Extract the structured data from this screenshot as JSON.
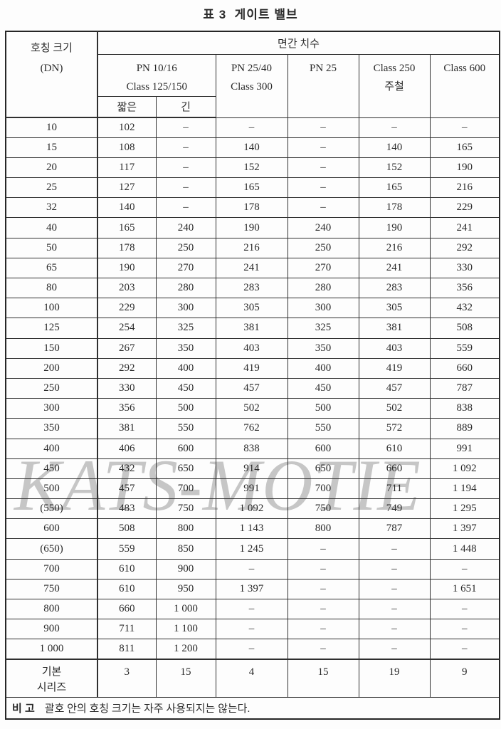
{
  "title": "표 3  게이트 밸브",
  "watermark": "KATS-MOTIE",
  "colors": {
    "text": "#2a2a2a",
    "border": "#2f2f2f",
    "watermark": "#c6c6c6",
    "background": "#fdfdfd"
  },
  "table": {
    "header": {
      "dn_line1": "호칭 크기",
      "dn_line2": "(DN)",
      "span_title": "면간 치수",
      "group_pn1016_line1": "PN 10/16",
      "group_pn1016_line2": "Class 125/150",
      "sub_short": "짧은",
      "sub_long": "긴",
      "pn2540_line1": "PN 25/40",
      "pn2540_line2": "Class 300",
      "pn25": "PN 25",
      "class250_line1": "Class 250",
      "class250_line2": "주철",
      "class600": "Class 600"
    },
    "rows": [
      [
        "10",
        "102",
        "–",
        "–",
        "–",
        "–",
        "–"
      ],
      [
        "15",
        "108",
        "–",
        "140",
        "–",
        "140",
        "165"
      ],
      [
        "20",
        "117",
        "–",
        "152",
        "–",
        "152",
        "190"
      ],
      [
        "25",
        "127",
        "–",
        "165",
        "–",
        "165",
        "216"
      ],
      [
        "32",
        "140",
        "–",
        "178",
        "–",
        "178",
        "229"
      ],
      [
        "40",
        "165",
        "240",
        "190",
        "240",
        "190",
        "241"
      ],
      [
        "50",
        "178",
        "250",
        "216",
        "250",
        "216",
        "292"
      ],
      [
        "65",
        "190",
        "270",
        "241",
        "270",
        "241",
        "330"
      ],
      [
        "80",
        "203",
        "280",
        "283",
        "280",
        "283",
        "356"
      ],
      [
        "100",
        "229",
        "300",
        "305",
        "300",
        "305",
        "432"
      ],
      [
        "125",
        "254",
        "325",
        "381",
        "325",
        "381",
        "508"
      ],
      [
        "150",
        "267",
        "350",
        "403",
        "350",
        "403",
        "559"
      ],
      [
        "200",
        "292",
        "400",
        "419",
        "400",
        "419",
        "660"
      ],
      [
        "250",
        "330",
        "450",
        "457",
        "450",
        "457",
        "787"
      ],
      [
        "300",
        "356",
        "500",
        "502",
        "500",
        "502",
        "838"
      ],
      [
        "350",
        "381",
        "550",
        "762",
        "550",
        "572",
        "889"
      ],
      [
        "400",
        "406",
        "600",
        "838",
        "600",
        "610",
        "991"
      ],
      [
        "450",
        "432",
        "650",
        "914",
        "650",
        "660",
        "1 092"
      ],
      [
        "500",
        "457",
        "700",
        "991",
        "700",
        "711",
        "1 194"
      ],
      [
        "(550)",
        "483",
        "750",
        "1 092",
        "750",
        "749",
        "1 295"
      ],
      [
        "600",
        "508",
        "800",
        "1 143",
        "800",
        "787",
        "1 397"
      ],
      [
        "(650)",
        "559",
        "850",
        "1 245",
        "–",
        "–",
        "1 448"
      ],
      [
        "700",
        "610",
        "900",
        "–",
        "–",
        "–",
        "–"
      ],
      [
        "750",
        "610",
        "950",
        "1 397",
        "–",
        "–",
        "1 651"
      ],
      [
        "800",
        "660",
        "1 000",
        "–",
        "–",
        "–",
        "–"
      ],
      [
        "900",
        "711",
        "1 100",
        "–",
        "–",
        "–",
        "–"
      ],
      [
        "1 000",
        "811",
        "1 200",
        "–",
        "–",
        "–",
        "–"
      ]
    ],
    "basic_series": {
      "label_line1": "기본",
      "label_line2": "시리즈",
      "values": [
        "3",
        "15",
        "4",
        "15",
        "19",
        "9"
      ]
    },
    "note": {
      "label": "비 고",
      "text": "괄호 안의 호칭 크기는 자주 사용되지는 않는다."
    }
  }
}
